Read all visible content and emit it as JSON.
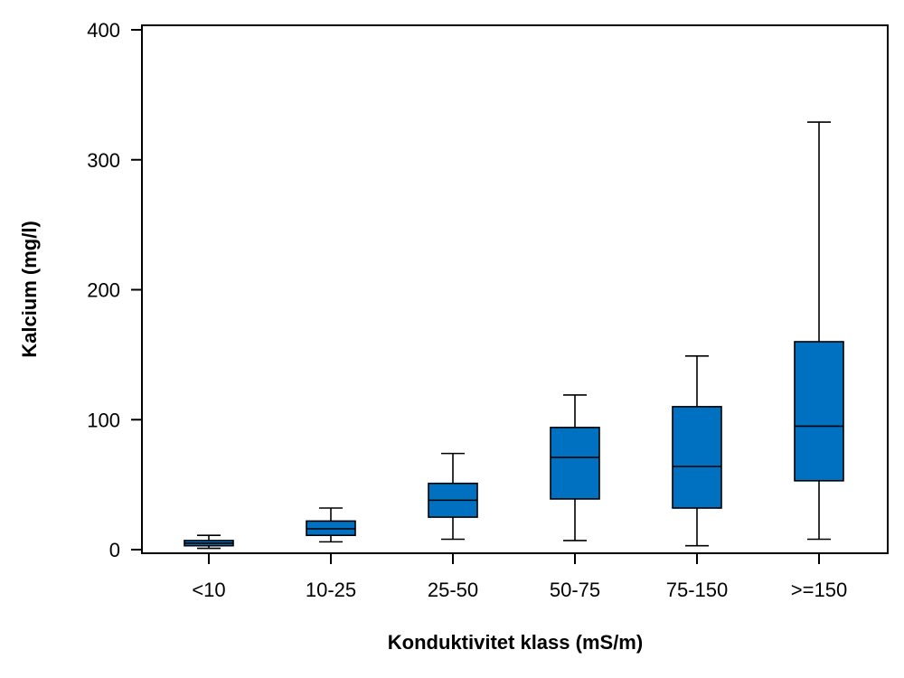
{
  "chart_data": {
    "type": "boxplot",
    "title": "",
    "xlabel": "Konduktivitet klass (mS/m)",
    "ylabel": "Kalcium (mg/l)",
    "ylim": [
      0,
      400
    ],
    "yticks": [
      0,
      100,
      200,
      300,
      400
    ],
    "grid": false,
    "legend": "none",
    "box_color": "#0070C0",
    "categories": [
      "<10",
      "10-25",
      "25-50",
      "50-75",
      "75-150",
      ">=150"
    ],
    "boxes": [
      {
        "category": "<10",
        "whisker_low": 1,
        "q1": 3,
        "median": 5,
        "q3": 7,
        "whisker_high": 11
      },
      {
        "category": "10-25",
        "whisker_low": 6,
        "q1": 11,
        "median": 16,
        "q3": 22,
        "whisker_high": 32
      },
      {
        "category": "25-50",
        "whisker_low": 8,
        "q1": 25,
        "median": 38,
        "q3": 51,
        "whisker_high": 74
      },
      {
        "category": "50-75",
        "whisker_low": 7,
        "q1": 39,
        "median": 71,
        "q3": 94,
        "whisker_high": 119
      },
      {
        "category": "75-150",
        "whisker_low": 3,
        "q1": 32,
        "median": 64,
        "q3": 110,
        "whisker_high": 149
      },
      {
        "category": ">=150",
        "whisker_low": 8,
        "q1": 53,
        "median": 95,
        "q3": 160,
        "whisker_high": 329
      }
    ]
  }
}
